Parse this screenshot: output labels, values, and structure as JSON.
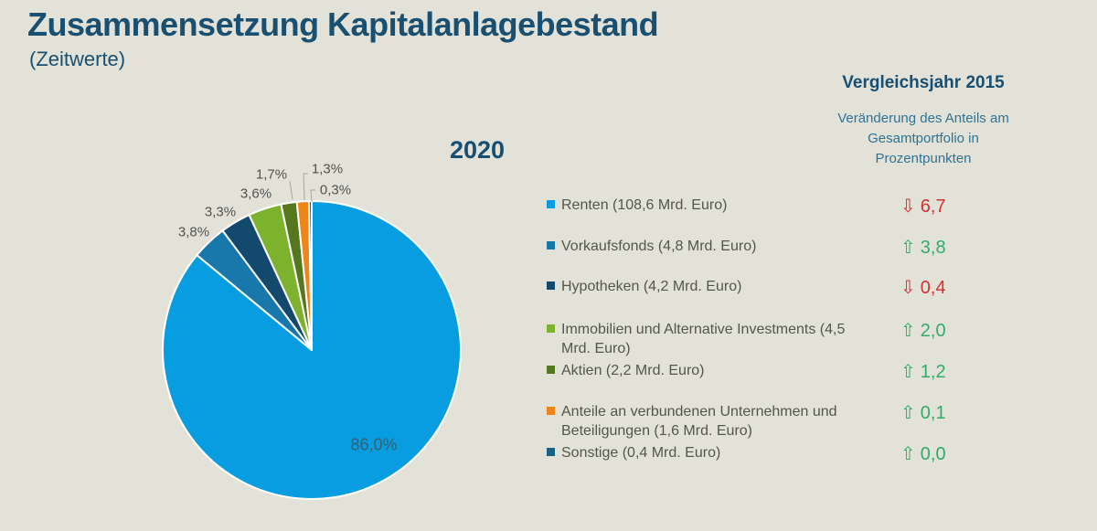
{
  "page": {
    "background_color": "#e3e2d8",
    "legend_text_color": "#53564a",
    "title_color": "#194f70"
  },
  "header": {
    "title": "Zusammensetzung Kapitalanlagebestand",
    "subtitle": "(Zeitwerte)"
  },
  "comparison_header": {
    "title": "Vergleichsjahr 2015",
    "description": "Veränderung des Anteils am Gesamtportfolio in Prozentpunkten"
  },
  "chart_data": {
    "type": "pie",
    "title": "2020",
    "start_angle": "12-o-clock",
    "direction": "clockwise",
    "unit": "Mrd. Euro",
    "legend_position": "right",
    "change_colors": {
      "up": "#2fad68",
      "down": "#d23232"
    },
    "change_arrows": {
      "up": "⇧",
      "down": "⇩"
    },
    "slices": [
      {
        "name": "Renten",
        "legend_label": "Renten (108,6 Mrd. Euro)",
        "amount_mrd_euro": 108.6,
        "percent": 86.0,
        "percent_label": "86,0%",
        "color": "#089de0",
        "change": {
          "text": "6,7",
          "direction": "down"
        }
      },
      {
        "name": "Vorkaufsfonds",
        "legend_label": "Vorkaufsfonds (4,8 Mrd. Euro)",
        "amount_mrd_euro": 4.8,
        "percent": 3.8,
        "percent_label": "3,8%",
        "color": "#1878ab",
        "change": {
          "text": "3,8",
          "direction": "up"
        }
      },
      {
        "name": "Hypotheken",
        "legend_label": "Hypotheken (4,2 Mrd. Euro)",
        "amount_mrd_euro": 4.2,
        "percent": 3.3,
        "percent_label": "3,3%",
        "color": "#14496e",
        "change": {
          "text": "0,4",
          "direction": "down"
        }
      },
      {
        "name": "Immobilien und Alternative Investments",
        "legend_label": "Immobilien und Alternative Investments (4,5 Mrd. Euro)",
        "amount_mrd_euro": 4.5,
        "percent": 3.6,
        "percent_label": "3,6%",
        "color": "#7db32c",
        "change": {
          "text": "2,0",
          "direction": "up"
        }
      },
      {
        "name": "Aktien",
        "legend_label": "Aktien (2,2 Mrd. Euro)",
        "amount_mrd_euro": 2.2,
        "percent": 1.7,
        "percent_label": "1,7%",
        "color": "#55781f",
        "change": {
          "text": "1,2",
          "direction": "up"
        }
      },
      {
        "name": "Anteile an verbundenen Unternehmen und Beteiligungen",
        "legend_label": "Anteile an verbundenen Unternehmen und Beteiligungen (1,6 Mrd. Euro)",
        "amount_mrd_euro": 1.6,
        "percent": 1.3,
        "percent_label": "1,3%",
        "color": "#ef8418",
        "change": {
          "text": "0,1",
          "direction": "up"
        }
      },
      {
        "name": "Sonstige",
        "legend_label": "Sonstige (0,4 Mrd. Euro)",
        "amount_mrd_euro": 0.4,
        "percent": 0.3,
        "percent_label": "0,3%",
        "color": "#176186",
        "change": {
          "text": "0,0",
          "direction": "up"
        }
      }
    ]
  }
}
